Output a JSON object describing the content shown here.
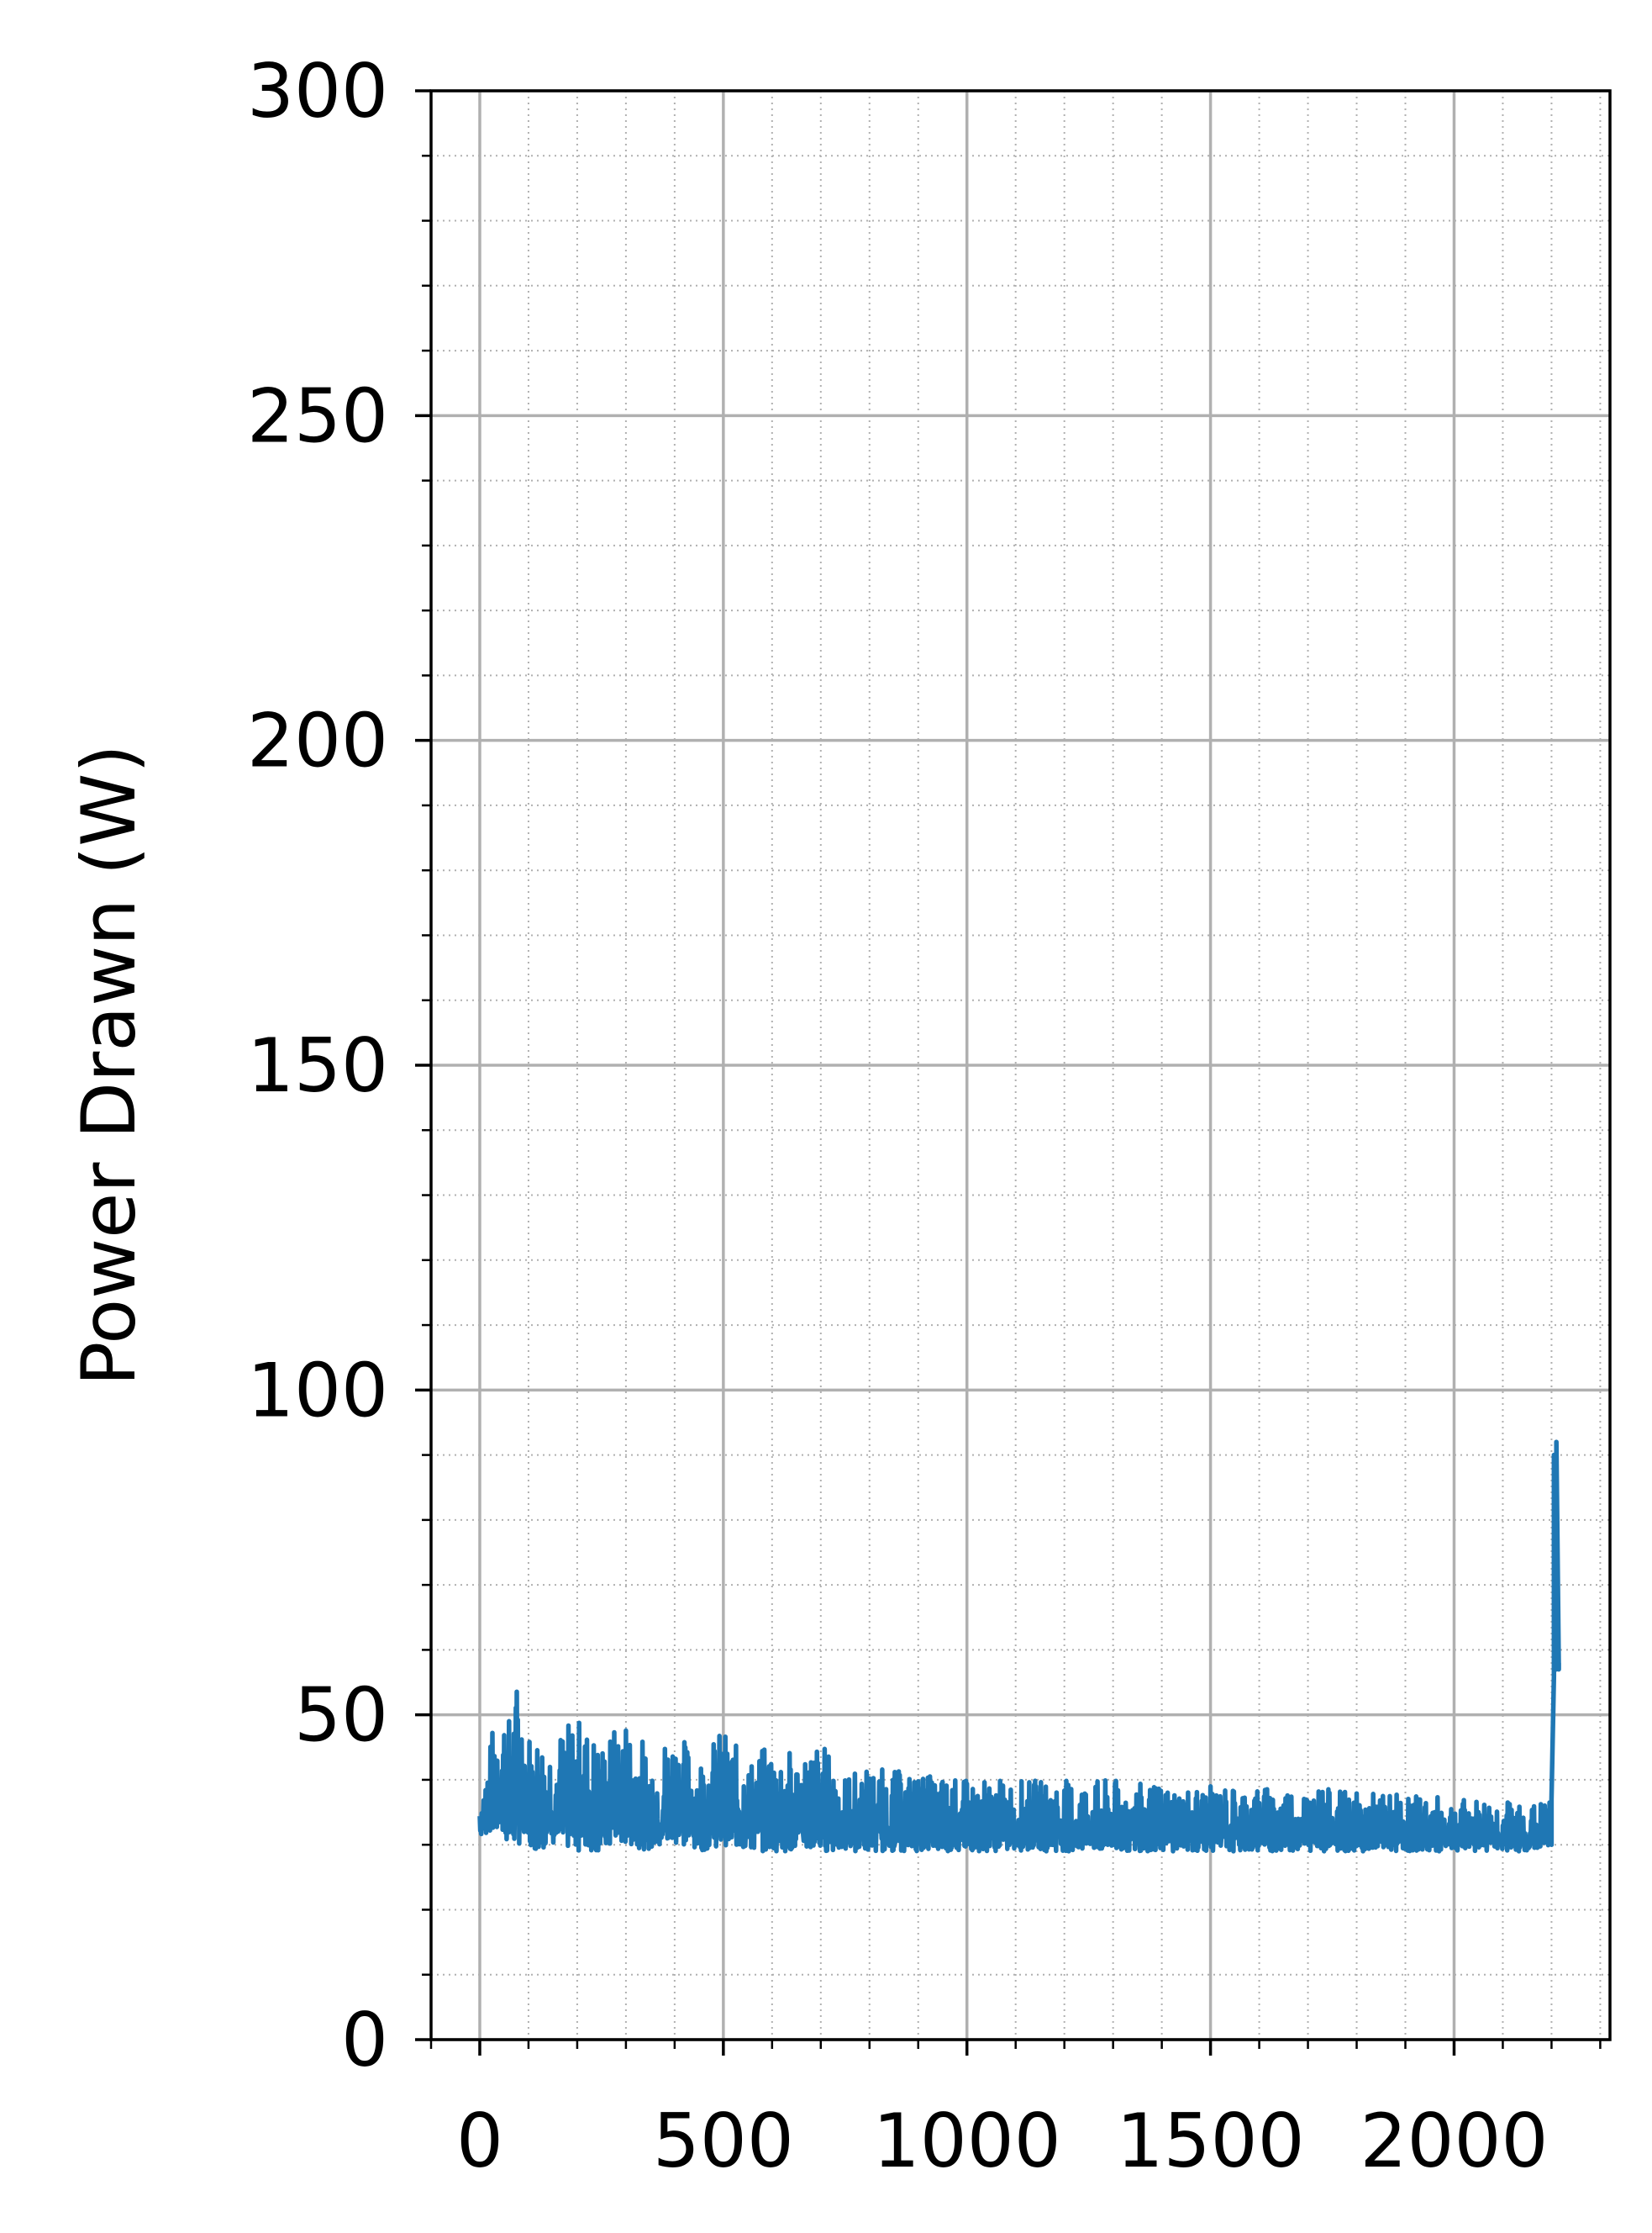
{
  "chart_data": {
    "type": "line",
    "xlabel": "",
    "ylabel": "Power Drawn (W)",
    "xlim": [
      -100,
      2320
    ],
    "ylim": [
      0,
      300
    ],
    "x_ticks": [
      0,
      500,
      1000,
      1500,
      2000
    ],
    "x_tick_labels": [
      "0",
      "500",
      "1000",
      "1500",
      "2000"
    ],
    "x_minor_step": 100,
    "y_ticks": [
      0,
      50,
      100,
      150,
      200,
      250,
      300
    ],
    "y_tick_labels": [
      "0",
      "50",
      "100",
      "150",
      "200",
      "250",
      "300"
    ],
    "y_minor_step": 10,
    "grid": {
      "major": true,
      "minor": true
    },
    "series": [
      {
        "color": "#1f77b4",
        "x": [
          0,
          20,
          40,
          60,
          80,
          100,
          150,
          200,
          250,
          300,
          350,
          400,
          450,
          500,
          550,
          600,
          650,
          700,
          750,
          800,
          900,
          1000,
          1100,
          1200,
          1300,
          1400,
          1500,
          1600,
          1700,
          1800,
          1900,
          2000,
          2100,
          2150,
          2200,
          2205,
          2210,
          2215
        ],
        "y": [
          38,
          45,
          55,
          50,
          57,
          48,
          47,
          50,
          46,
          50,
          45,
          48,
          44,
          48,
          43,
          46,
          44,
          46,
          41,
          42,
          41,
          40,
          40,
          40,
          40,
          39,
          39,
          39,
          39,
          38,
          38,
          37,
          37,
          36,
          37,
          90,
          92,
          58
        ],
        "y_low": [
          31,
          32,
          31,
          30,
          30,
          29,
          30,
          29,
          29,
          30,
          29,
          30,
          29,
          30,
          29,
          29,
          29,
          29,
          29,
          29,
          29,
          29,
          29,
          29,
          29,
          29,
          29,
          29,
          29,
          29,
          29,
          29,
          29,
          29,
          30,
          56,
          57,
          57
        ]
      }
    ],
    "colors": {
      "line": "#1f77b4",
      "major_grid": "#b0b0b0",
      "minor_grid": "#b0b0b0",
      "axes": "#000000"
    }
  }
}
